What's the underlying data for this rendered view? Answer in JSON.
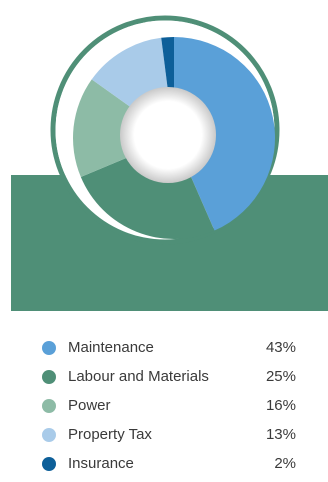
{
  "chart_data": {
    "type": "pie",
    "variant": "donut",
    "title": "",
    "legend_position": "bottom",
    "slices": [
      {
        "label": "Maintenance",
        "value": 43,
        "display": "43%",
        "color": "#5aa0d8"
      },
      {
        "label": "Labour and Materials",
        "value": 25,
        "display": "25%",
        "color": "#4f8f77"
      },
      {
        "label": "Power",
        "value": 16,
        "display": "16%",
        "color": "#8dbba6"
      },
      {
        "label": "Property Tax",
        "value": 13,
        "display": "13%",
        "color": "#a9cbe9"
      },
      {
        "label": "Insurance",
        "value": 2,
        "display": "2%",
        "color": "#0d5f99"
      }
    ]
  },
  "colors": {
    "band": "#4f8f77",
    "ring": "#4f8f77",
    "text": "#3a3a3a"
  }
}
